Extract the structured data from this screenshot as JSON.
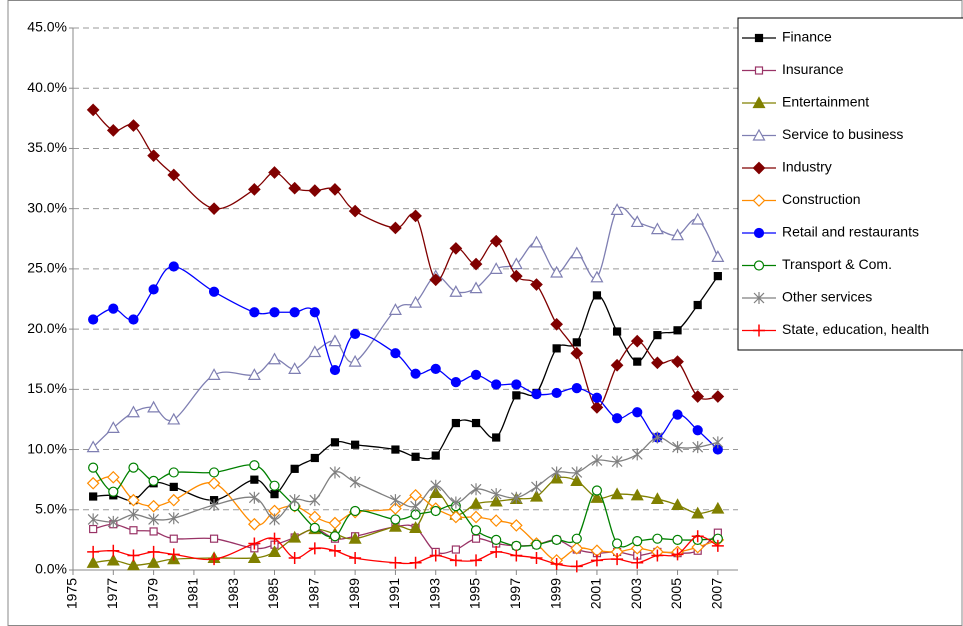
{
  "chart_data": {
    "type": "line",
    "x": [
      1976,
      1977,
      1978,
      1979,
      1980,
      1982,
      1984,
      1985,
      1986,
      1987,
      1988,
      1989,
      1991,
      1992,
      1993,
      1994,
      1995,
      1996,
      1997,
      1998,
      1999,
      2000,
      2001,
      2002,
      2003,
      2004,
      2005,
      2006,
      2007
    ],
    "xlim": [
      1975,
      2008
    ],
    "xticks": [
      1975,
      1977,
      1979,
      1981,
      1983,
      1985,
      1987,
      1989,
      1991,
      1993,
      1995,
      1997,
      1999,
      2001,
      2003,
      2005,
      2007
    ],
    "ylim": [
      0,
      45
    ],
    "yticks": [
      {
        "value": 0,
        "label": "0.0%"
      },
      {
        "value": 5,
        "label": "5.0%"
      },
      {
        "value": 10,
        "label": "10.0%"
      },
      {
        "value": 15,
        "label": "15.0%"
      },
      {
        "value": 20,
        "label": "20.0%"
      },
      {
        "value": 25,
        "label": "25.0%"
      },
      {
        "value": 30,
        "label": "30.0%"
      },
      {
        "value": 35,
        "label": "35.0%"
      },
      {
        "value": 40,
        "label": "40.0%"
      },
      {
        "value": 45,
        "label": "45.0%"
      }
    ],
    "grid": true,
    "legend": "right",
    "series": [
      {
        "name": "Finance",
        "color": "#000000",
        "marker": "square",
        "values": [
          6.1,
          6.2,
          5.8,
          7.2,
          6.9,
          5.8,
          7.5,
          6.3,
          8.4,
          9.3,
          10.6,
          10.4,
          10.0,
          9.4,
          9.5,
          12.2,
          12.2,
          11.0,
          14.5,
          14.7,
          18.4,
          18.9,
          22.8,
          19.8,
          17.3,
          19.5,
          19.9,
          22.0,
          24.4
        ]
      },
      {
        "name": "Insurance",
        "color": "#993366",
        "marker": "open-square",
        "values": [
          3.4,
          3.8,
          3.3,
          3.2,
          2.6,
          2.6,
          1.8,
          2.1,
          2.7,
          3.4,
          2.6,
          2.8,
          3.6,
          3.5,
          1.5,
          1.7,
          2.6,
          2.2,
          2.0,
          2.1,
          2.5,
          1.7,
          1.4,
          1.5,
          1.2,
          1.5,
          1.4,
          1.6,
          3.1
        ]
      },
      {
        "name": "Entertainment",
        "color": "#808000",
        "marker": "triangle",
        "values": [
          0.6,
          0.8,
          0.4,
          0.6,
          0.9,
          1.0,
          1.0,
          1.5,
          2.7,
          3.4,
          3.0,
          2.6,
          3.6,
          3.5,
          6.4,
          4.6,
          5.5,
          5.7,
          5.9,
          6.1,
          7.6,
          7.4,
          6.0,
          6.3,
          6.2,
          5.9,
          5.4,
          4.7,
          5.1
        ]
      },
      {
        "name": "Service to business",
        "color": "#7f7fb2",
        "marker": "open-triangle",
        "values": [
          10.2,
          11.8,
          13.1,
          13.5,
          12.5,
          16.2,
          16.2,
          17.5,
          16.7,
          18.1,
          19.0,
          17.3,
          21.6,
          22.2,
          24.4,
          23.1,
          23.4,
          25.0,
          25.4,
          27.2,
          24.7,
          26.3,
          24.3,
          29.9,
          28.9,
          28.3,
          27.8,
          29.1,
          26.0
        ]
      },
      {
        "name": "Industry",
        "color": "#800000",
        "marker": "diamond",
        "values": [
          38.2,
          36.5,
          36.9,
          34.4,
          32.8,
          30.0,
          31.6,
          33.0,
          31.7,
          31.5,
          31.6,
          29.8,
          28.4,
          29.4,
          24.1,
          26.7,
          25.4,
          27.3,
          24.4,
          23.7,
          20.4,
          18.0,
          13.5,
          17.0,
          19.0,
          17.2,
          17.3,
          14.4,
          14.4
        ]
      },
      {
        "name": "Construction",
        "color": "#ff8c00",
        "marker": "open-diamond",
        "values": [
          7.2,
          7.7,
          5.8,
          5.3,
          5.8,
          7.2,
          3.8,
          4.9,
          5.3,
          4.4,
          3.9,
          4.8,
          5.1,
          6.2,
          5.1,
          4.4,
          4.4,
          4.1,
          3.7,
          2.2,
          0.8,
          1.8,
          1.6,
          1.5,
          1.8,
          1.5,
          1.5,
          1.9,
          2.5
        ]
      },
      {
        "name": "Retail and restaurants",
        "color": "#0000ff",
        "marker": "circle",
        "values": [
          20.8,
          21.7,
          20.8,
          23.3,
          25.2,
          23.1,
          21.4,
          21.4,
          21.4,
          21.4,
          16.6,
          19.6,
          18.0,
          16.3,
          16.7,
          15.6,
          16.2,
          15.4,
          15.4,
          14.6,
          14.7,
          15.1,
          14.3,
          12.6,
          13.1,
          11.0,
          12.9,
          11.6,
          10.0
        ]
      },
      {
        "name": "Transport & Com.",
        "color": "#008000",
        "marker": "open-circle",
        "values": [
          8.5,
          6.5,
          8.5,
          7.4,
          8.1,
          8.1,
          8.7,
          7.0,
          5.3,
          3.5,
          2.8,
          4.9,
          4.2,
          4.6,
          4.9,
          5.3,
          3.3,
          2.5,
          2.0,
          2.1,
          2.5,
          2.6,
          6.6,
          2.2,
          2.4,
          2.6,
          2.5,
          2.5,
          2.6
        ]
      },
      {
        "name": "Other services",
        "color": "#808080",
        "marker": "star",
        "values": [
          4.2,
          4.0,
          4.6,
          4.2,
          4.3,
          5.4,
          6.0,
          4.2,
          5.8,
          5.8,
          8.1,
          7.3,
          5.8,
          5.3,
          7.0,
          5.6,
          6.7,
          6.3,
          6.0,
          6.9,
          8.1,
          8.1,
          9.1,
          9.0,
          9.6,
          11.0,
          10.2,
          10.2,
          10.6
        ]
      },
      {
        "name": "State, education, health",
        "color": "#ff0000",
        "marker": "plus",
        "values": [
          1.5,
          1.6,
          1.2,
          1.5,
          1.3,
          0.9,
          2.2,
          2.6,
          1.0,
          1.8,
          1.6,
          1.0,
          0.6,
          0.6,
          1.2,
          0.8,
          0.8,
          1.5,
          1.2,
          1.0,
          0.5,
          0.3,
          0.8,
          0.9,
          0.6,
          1.2,
          1.3,
          2.8,
          2.0
        ]
      }
    ]
  }
}
